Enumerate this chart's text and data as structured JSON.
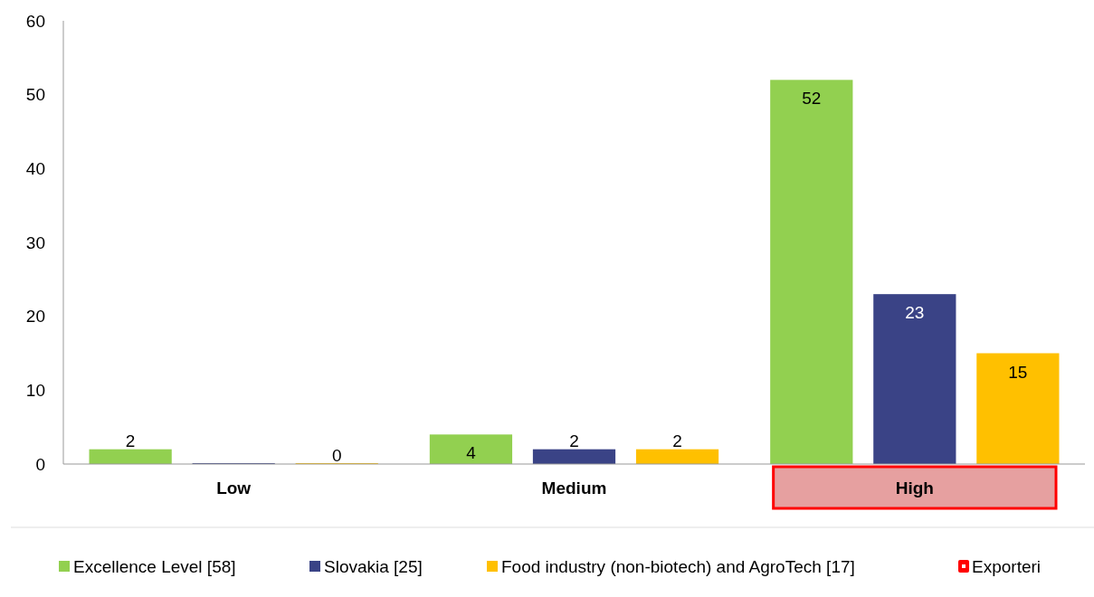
{
  "chart_data": {
    "type": "bar",
    "categories": [
      "Low",
      "Medium",
      "High"
    ],
    "series": [
      {
        "name": "Excellence Level [58]",
        "color": "#92d050",
        "values": [
          2,
          4,
          52
        ],
        "value_labels": [
          "2",
          "4",
          "52"
        ]
      },
      {
        "name": "Slovakia [25]",
        "color": "#3a4386",
        "values": [
          0,
          2,
          23
        ],
        "value_labels": [
          null,
          "2",
          "23"
        ]
      },
      {
        "name": "Food industry (non-biotech) and AgroTech [17]",
        "color": "#ffc000",
        "values": [
          0,
          2,
          15
        ],
        "value_labels": [
          "0",
          "2",
          "15"
        ]
      }
    ],
    "ylim": [
      0,
      60
    ],
    "yticks": [
      0,
      10,
      20,
      30,
      40,
      50,
      60
    ],
    "grid": false,
    "legend": "bottom",
    "annotations": [
      "Exporteri"
    ]
  }
}
